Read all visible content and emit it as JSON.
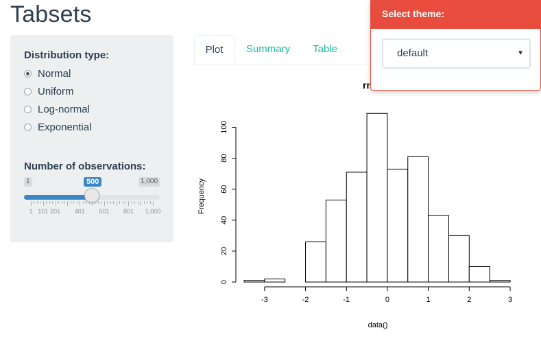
{
  "app": {
    "title": "Tabsets"
  },
  "sidebar": {
    "distribution_label": "Distribution type:",
    "distributions": [
      {
        "label": "Normal",
        "checked": true
      },
      {
        "label": "Uniform",
        "checked": false
      },
      {
        "label": "Log-normal",
        "checked": false
      },
      {
        "label": "Exponential",
        "checked": false
      }
    ],
    "slider": {
      "label": "Number of observations:",
      "min_label": "1",
      "max_label": "1,000",
      "value_label": "500",
      "min": 1,
      "max": 1000,
      "value": 500,
      "tick_labels": [
        "1",
        "101",
        "201",
        "401",
        "601",
        "801",
        "1,000"
      ]
    }
  },
  "tabs": {
    "items": [
      {
        "label": "Plot",
        "active": true
      },
      {
        "label": "Summary",
        "active": false
      },
      {
        "label": "Table",
        "active": false
      }
    ]
  },
  "theme_selector": {
    "header": "Select theme:",
    "selected": "default"
  },
  "colors": {
    "primary": "#2c3e50",
    "success": "#18bc9c",
    "danger": "#e74c3c",
    "info": "#3b86c6",
    "well": "#ecf0f1"
  },
  "chart_data": {
    "type": "bar",
    "title": "rnor",
    "xlabel": "data()",
    "ylabel": "Frequency",
    "bin_edges": [
      -3.5,
      -3,
      -2.5,
      -2,
      -1.5,
      -1,
      -0.5,
      0,
      0.5,
      1,
      1.5,
      2,
      2.5,
      3
    ],
    "values": [
      1,
      2,
      0,
      26,
      53,
      71,
      109,
      73,
      81,
      43,
      30,
      10,
      1
    ],
    "xticks": [
      -3,
      -2,
      -1,
      0,
      1,
      2,
      3
    ],
    "yticks": [
      0,
      20,
      40,
      60,
      80,
      100
    ],
    "xlim": [
      -3.5,
      3
    ],
    "ylim": [
      0,
      110
    ],
    "grid": false
  }
}
